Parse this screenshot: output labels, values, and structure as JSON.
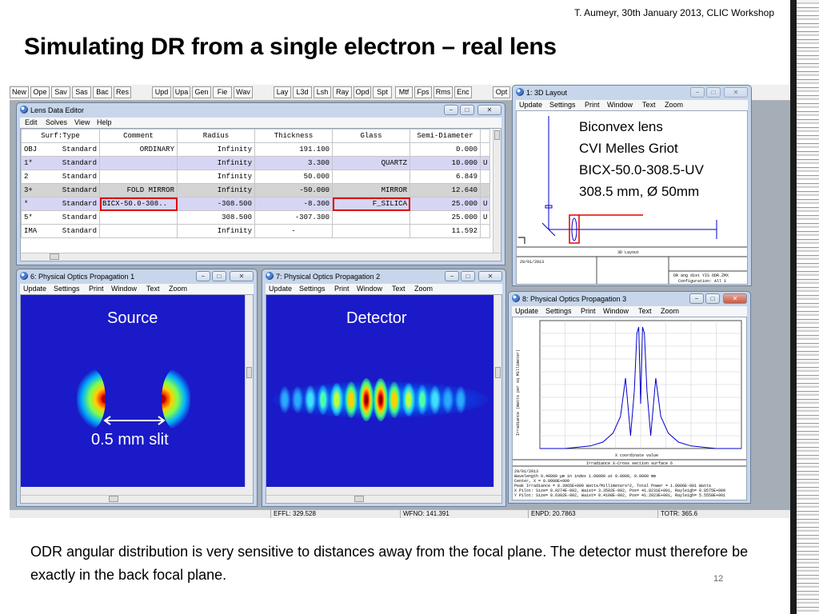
{
  "slide": {
    "header_note": "T. Aumeyr, 30th January 2013, CLIC Workshop",
    "title": "Simulating DR from a single electron – real lens",
    "caption": "ODR angular distribution is very sensitive to distances away from the focal plane. The detector must therefore be exactly in the back focal plane.",
    "page_number": "12"
  },
  "toolbar": {
    "buttons": [
      "New",
      "Ope",
      "Sav",
      "Sas",
      "Bac",
      "Res",
      "Upd",
      "Upa",
      "Gen",
      "Fie",
      "Wav",
      "Lay",
      "L3d",
      "Lsh",
      "Ray",
      "Opd",
      "Spt",
      "Mtf",
      "Fps",
      "Rms",
      "Enc",
      "Opt"
    ]
  },
  "statusbar": {
    "efl": "EFFL: 329.528",
    "wfno": "WFNO: 141.391",
    "enpd": "ENPD: 20.7863",
    "totr": "TOTR: 365.6"
  },
  "lde": {
    "title": "Lens Data Editor",
    "menu": [
      "Edit",
      "Solves",
      "View",
      "Help"
    ],
    "headers": [
      "Surf:Type",
      "Comment",
      "Radius",
      "Thickness",
      "Glass",
      "Semi-Diameter"
    ],
    "rows": [
      {
        "surf": "OBJ",
        "type": "Standard",
        "comment": "ORDINARY",
        "radius": "Infinity",
        "thickness": "191.100",
        "glass": "",
        "semi": "0.000",
        "flag": ""
      },
      {
        "surf": "1*",
        "type": "Standard",
        "comment": "",
        "radius": "Infinity",
        "thickness": "3.300",
        "glass": "QUARTZ",
        "semi": "10.000",
        "flag": "U"
      },
      {
        "surf": "2",
        "type": "Standard",
        "comment": "",
        "radius": "Infinity",
        "thickness": "50.000",
        "glass": "",
        "semi": "6.849",
        "flag": ""
      },
      {
        "surf": "3+",
        "type": "Standard",
        "comment": "FOLD MIRROR",
        "radius": "Infinity",
        "thickness": "-50.000",
        "glass": "MIRROR",
        "semi": "12.640",
        "flag": ""
      },
      {
        "surf": "*",
        "type": "Standard",
        "comment": "BICX-50.0-308..",
        "radius": "-308.500",
        "thickness": "-8.300",
        "glass": "F_SILICA",
        "semi": "25.000",
        "flag": "U"
      },
      {
        "surf": "5*",
        "type": "Standard",
        "comment": "",
        "radius": "308.500",
        "thickness": "-307.300",
        "glass": "",
        "semi": "25.000",
        "flag": "U"
      },
      {
        "surf": "IMA",
        "type": "Standard",
        "comment": "",
        "radius": "Infinity",
        "thickness": "-",
        "glass": "",
        "semi": "11.592",
        "flag": ""
      }
    ]
  },
  "window_menu": [
    "Update",
    "Settings",
    "Print",
    "Window",
    "Text",
    "Zoom"
  ],
  "pop1": {
    "title": "6: Physical Optics Propagation 1",
    "label": "Source",
    "slit_label": "0.5 mm slit"
  },
  "pop2": {
    "title": "7: Physical Optics Propagation 2",
    "label": "Detector"
  },
  "layout3d": {
    "title": "1: 3D Layout",
    "lens_info": [
      "Biconvex lens",
      "CVI Melles Griot",
      "BICX-50.0-308.5-UV",
      "308.5 mm, Ø 50mm"
    ],
    "footer_title": "3D Layout",
    "footer_date": "29/01/2013",
    "footer_right_1": "DR ang dist YIS ODR.ZMX",
    "footer_right_2": "Configuration: All 1"
  },
  "pop3": {
    "title": "8: Physical Optics Propagation 3",
    "xlabel": "X coordinate value",
    "ylabel": "Irradiance (Watts per sq Millimeter)",
    "plot_title": "Irradiance X-Cross section surface 6",
    "info_lines": [
      "29/01/2013",
      "Wavelength 0.40000 µm in index 1.00000 at 0.0000, 0.0000 mm",
      "Center, X = 0.0000E+000",
      "Peak Irradiance = 8.3965E+000 Watts/Millimeters^2, Total Power = 1.0006E-001 Watts",
      "X Pilot: Size= 8.0274E-002, Waist= 3.3582E-002, Pos= 41.8231E+001, Rayleigh= 8.8575E+000",
      "Y Pilot: Size= 8.6302E-002, Waist= 8.4108E-002, Pos= 41.2823E+001, Rayleigh= 5.5558E+001"
    ]
  },
  "chart_data": {
    "type": "line",
    "title": "Irradiance X-Cross section surface 6",
    "xlabel": "X coordinate value",
    "ylabel": "Irradiance (Watts per sq Millimeter)",
    "x": [
      -0.8,
      -0.6,
      -0.4,
      -0.3,
      -0.22,
      -0.16,
      -0.12,
      -0.08,
      -0.05,
      -0.03,
      -0.015,
      0,
      0.015,
      0.03,
      0.05,
      0.08,
      0.12,
      0.16,
      0.22,
      0.3,
      0.4,
      0.6,
      0.8
    ],
    "y": [
      0.0,
      0.0,
      0.02,
      0.05,
      0.12,
      0.25,
      0.55,
      0.1,
      0.45,
      0.9,
      0.95,
      0.35,
      0.95,
      0.9,
      0.45,
      0.1,
      0.55,
      0.25,
      0.12,
      0.05,
      0.02,
      0.0,
      0.0
    ],
    "xlim": [
      -0.8,
      0.8
    ],
    "ylim": [
      0,
      1
    ]
  }
}
